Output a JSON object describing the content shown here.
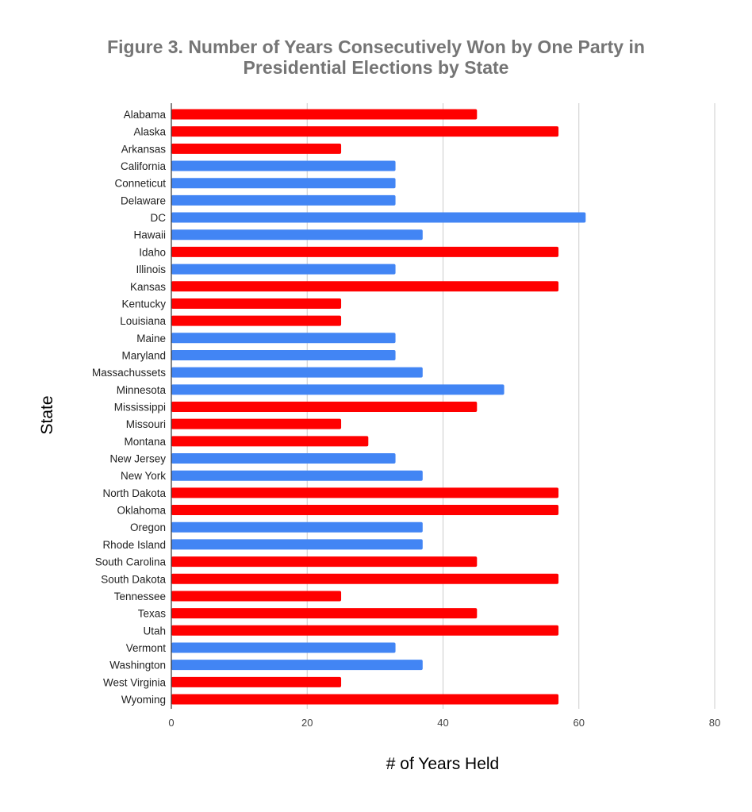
{
  "chart_data": {
    "type": "bar",
    "orientation": "horizontal",
    "title": "Figure 3. Number of Years Consecutively Won by One Party in Presidential Elections by State",
    "title_lines": [
      "Figure 3. Number of Years Consecutively Won by One Party in",
      "Presidential Elections by State"
    ],
    "xlabel": "# of Years Held",
    "ylabel": "State",
    "xlim": [
      0,
      80
    ],
    "xticks": [
      0,
      20,
      40,
      60,
      80
    ],
    "grid": true,
    "colors": {
      "R": "#ff0000",
      "D": "#4285f4"
    },
    "categories": [
      "Alabama",
      "Alaska",
      "Arkansas",
      "California",
      "Conneticut",
      "Delaware",
      "DC",
      "Hawaii",
      "Idaho",
      "Illinois",
      "Kansas",
      "Kentucky",
      "Louisiana",
      "Maine",
      "Maryland",
      "Massachussets",
      "Minnesota",
      "Mississippi",
      "Missouri",
      "Montana",
      "New Jersey",
      "New York",
      "North Dakota",
      "Oklahoma",
      "Oregon",
      "Rhode Island",
      "South Carolina",
      "South Dakota",
      "Tennessee",
      "Texas",
      "Utah",
      "Vermont",
      "Washington",
      "West Virginia",
      "Wyoming"
    ],
    "values": [
      45,
      57,
      25,
      33,
      33,
      33,
      61,
      37,
      57,
      33,
      57,
      25,
      25,
      33,
      33,
      37,
      49,
      45,
      25,
      29,
      33,
      37,
      57,
      57,
      37,
      37,
      45,
      57,
      25,
      45,
      57,
      33,
      37,
      25,
      57
    ],
    "party": [
      "R",
      "R",
      "R",
      "D",
      "D",
      "D",
      "D",
      "D",
      "R",
      "D",
      "R",
      "R",
      "R",
      "D",
      "D",
      "D",
      "D",
      "R",
      "R",
      "R",
      "D",
      "D",
      "R",
      "R",
      "D",
      "D",
      "R",
      "R",
      "R",
      "R",
      "R",
      "D",
      "D",
      "R",
      "R"
    ]
  }
}
